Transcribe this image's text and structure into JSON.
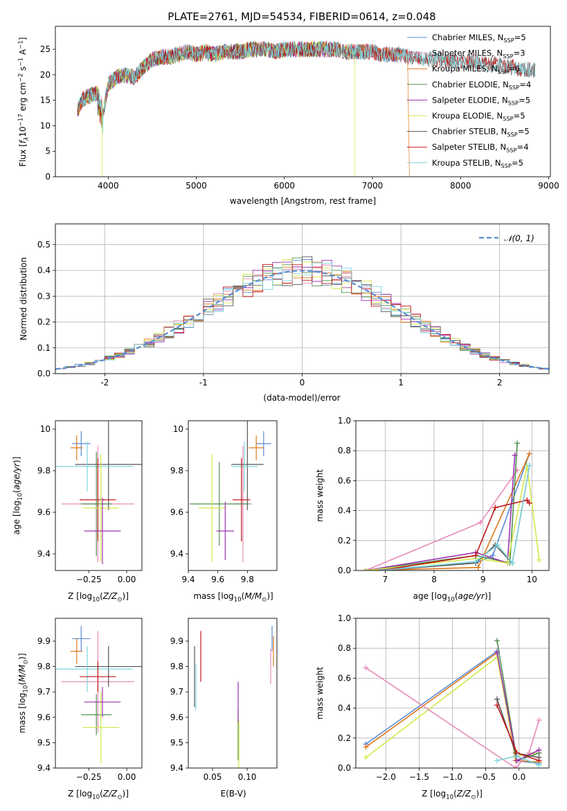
{
  "title": "PLATE=2761, MJD=54534, FIBERID=0614, z=0.048",
  "colors": {
    "Chabrier MILES": "#5b8bd4",
    "Salpeter MILES": "#e889b8",
    "Kroupa MILES": "#e0781c",
    "Chabrier ELODIE": "#4e8f4e",
    "Salpeter ELODIE": "#9b30b0",
    "Kroupa ELODIE": "#d3e84a",
    "Chabrier STELIB": "#555555",
    "Salpeter STELIB": "#c01818",
    "Kroupa STELIB": "#7dd6dc"
  },
  "chart_data": [
    {
      "id": "spectrum",
      "type": "line",
      "xlabel": "wavelength [Angstrom, rest frame]",
      "ylabel": "Flux [f_λ10^−17 erg cm^−2 s^−1 A^−1]",
      "xlim": [
        3400,
        9020
      ],
      "ylim": [
        0,
        29.5
      ],
      "xticks": [
        4000,
        5000,
        6000,
        7000,
        8000,
        9000
      ],
      "yticks": [
        0,
        5,
        10,
        15,
        20,
        25
      ],
      "legend_position": "top-right",
      "legend": [
        {
          "name": "Chabrier MILES",
          "prefix": "Chabrier MILES, N",
          "sub": "SSP",
          "suffix": "=5"
        },
        {
          "name": "Salpeter MILES",
          "prefix": "Salpeter MILES, N",
          "sub": "SSP",
          "suffix": "=3"
        },
        {
          "name": "Kroupa MILES",
          "prefix": "Kroupa MILES, N",
          "sub": "SSP",
          "suffix": "=6"
        },
        {
          "name": "Chabrier ELODIE",
          "prefix": "Chabrier ELODIE, N",
          "sub": "SSP",
          "suffix": "=4"
        },
        {
          "name": "Salpeter ELODIE",
          "prefix": "Salpeter ELODIE, N",
          "sub": "SSP",
          "suffix": "=5"
        },
        {
          "name": "Kroupa ELODIE",
          "prefix": "Kroupa ELODIE, N",
          "sub": "SSP",
          "suffix": "=5"
        },
        {
          "name": "Chabrier STELIB",
          "prefix": "Chabrier STELIB, N",
          "sub": "SSP",
          "suffix": "=5"
        },
        {
          "name": "Salpeter STELIB",
          "prefix": "Salpeter STELIB, N",
          "sub": "SSP",
          "suffix": "=4"
        },
        {
          "name": "Kroupa STELIB",
          "prefix": "Kroupa STELIB, N",
          "sub": "SSP",
          "suffix": "=5"
        }
      ],
      "continuum": [
        [
          3650,
          13
        ],
        [
          3700,
          15
        ],
        [
          3800,
          16
        ],
        [
          3900,
          16.5
        ],
        [
          3950,
          13
        ],
        [
          4000,
          18
        ],
        [
          4100,
          19.5
        ],
        [
          4200,
          20
        ],
        [
          4300,
          19.5
        ],
        [
          4400,
          21.5
        ],
        [
          4500,
          23
        ],
        [
          4600,
          23.5
        ],
        [
          4700,
          23.5
        ],
        [
          4800,
          24
        ],
        [
          4900,
          24.5
        ],
        [
          5000,
          24
        ],
        [
          5100,
          24.5
        ],
        [
          5200,
          24
        ],
        [
          5300,
          24.5
        ],
        [
          5400,
          24.5
        ],
        [
          5500,
          24.5
        ],
        [
          5600,
          25
        ],
        [
          5700,
          25
        ],
        [
          5800,
          25
        ],
        [
          5900,
          24.5
        ],
        [
          6000,
          25
        ],
        [
          6100,
          25
        ],
        [
          6200,
          25
        ],
        [
          6300,
          25
        ],
        [
          6400,
          25
        ],
        [
          6500,
          25
        ],
        [
          6600,
          25
        ],
        [
          6700,
          24.5
        ],
        [
          6800,
          24.5
        ],
        [
          6900,
          24.5
        ],
        [
          7000,
          24.5
        ],
        [
          7100,
          24
        ],
        [
          7200,
          24
        ],
        [
          7300,
          24
        ],
        [
          7400,
          23.5
        ],
        [
          7500,
          23.5
        ],
        [
          7600,
          23
        ],
        [
          7700,
          23
        ],
        [
          7800,
          23
        ],
        [
          7900,
          22.5
        ],
        [
          8000,
          22.5
        ],
        [
          8100,
          22.5
        ],
        [
          8200,
          22.5
        ],
        [
          8300,
          22
        ],
        [
          8400,
          22
        ],
        [
          8500,
          21.5
        ],
        [
          8600,
          21.5
        ],
        [
          8700,
          21
        ],
        [
          8800,
          21
        ],
        [
          8850,
          21
        ]
      ],
      "spectrum_ranges": [
        {
          "name": "Chabrier MILES",
          "xmax": 7400
        },
        {
          "name": "Salpeter MILES",
          "xmax": 7400
        },
        {
          "name": "Kroupa MILES",
          "xmax": 7400,
          "drop": 7420
        },
        {
          "name": "Chabrier ELODIE",
          "xmax": 6800
        },
        {
          "name": "Salpeter ELODIE",
          "xmax": 6800
        },
        {
          "name": "Kroupa ELODIE",
          "xmax": 6800,
          "drop": 6800
        },
        {
          "name": "Chabrier STELIB",
          "xmax": 8850
        },
        {
          "name": "Salpeter STELIB",
          "xmax": 8850
        },
        {
          "name": "Kroupa STELIB",
          "xmax": 8850
        }
      ]
    },
    {
      "id": "residuals",
      "type": "histogram",
      "xlabel": "(data-model)/error",
      "ylabel": "Normed distribution",
      "xlim": [
        -2.5,
        2.5
      ],
      "ylim": [
        0,
        0.58
      ],
      "xticks": [
        -2,
        -1,
        0,
        1,
        2
      ],
      "yticks": [
        0.0,
        0.1,
        0.2,
        0.3,
        0.4,
        0.5
      ],
      "grid": true,
      "legend_position": "top-right",
      "legend": [
        {
          "name": "𝒩(0, 1)",
          "style": "dashed",
          "color": "#5b8bd4"
        }
      ],
      "bin_width": 0.1,
      "bin_start": -2.5
    },
    {
      "id": "age-vs-Z",
      "type": "errorbar",
      "xlabel": "Z [log10(Z/Z⊙)]",
      "ylabel": "age  [log10(age/yr)]",
      "xlim": [
        -0.47,
        0.1
      ],
      "ylim": [
        9.32,
        10.04
      ],
      "xticks": [
        -0.25,
        0.0
      ],
      "xticklabels": [
        "−0.25",
        "0.00"
      ],
      "yticks": [
        9.4,
        9.6,
        9.8,
        10.0
      ],
      "points": [
        {
          "name": "Chabrier MILES",
          "x": -0.3,
          "xerr": 0.06,
          "y": 9.93,
          "yerr": 0.06
        },
        {
          "name": "Kroupa MILES",
          "x": -0.33,
          "xerr": 0.04,
          "y": 9.91,
          "yerr": 0.06
        },
        {
          "name": "Salpeter MILES",
          "x": -0.19,
          "xerr": 0.24,
          "y": 9.64,
          "yerr": 0.28
        },
        {
          "name": "Chabrier STELIB",
          "x": -0.12,
          "xerr": 0.22,
          "y": 9.83,
          "yerr": 0.22
        },
        {
          "name": "Kroupa STELIB",
          "x": -0.26,
          "xerr": 0.3,
          "y": 9.82,
          "yerr": 0.12
        },
        {
          "name": "Salpeter STELIB",
          "x": -0.19,
          "xerr": 0.12,
          "y": 9.66,
          "yerr": 0.2
        },
        {
          "name": "Chabrier ELODIE",
          "x": -0.2,
          "xerr": 0.1,
          "y": 9.64,
          "yerr": 0.25
        },
        {
          "name": "Kroupa ELODIE",
          "x": -0.17,
          "xerr": 0.12,
          "y": 9.62,
          "yerr": 0.26
        },
        {
          "name": "Salpeter ELODIE",
          "x": -0.16,
          "xerr": 0.12,
          "y": 9.51,
          "yerr": 0.16
        }
      ]
    },
    {
      "id": "age-vs-mass",
      "type": "errorbar",
      "xlabel": "mass [log10(M/M⊙)]",
      "xlim": [
        9.4,
        10.0
      ],
      "ylim": [
        9.32,
        10.04
      ],
      "xticks": [
        9.4,
        9.6,
        9.8
      ],
      "yticks": [
        9.4,
        9.6,
        9.8,
        10.0
      ],
      "points": [
        {
          "name": "Chabrier MILES",
          "x": 9.91,
          "xerr": 0.05,
          "y": 9.93,
          "yerr": 0.06
        },
        {
          "name": "Kroupa MILES",
          "x": 9.86,
          "xerr": 0.05,
          "y": 9.91,
          "yerr": 0.06
        },
        {
          "name": "Salpeter MILES",
          "x": 9.77,
          "xerr": 0.06,
          "y": 9.64,
          "yerr": 0.28
        },
        {
          "name": "Chabrier STELIB",
          "x": 9.8,
          "xerr": 0.11,
          "y": 9.83,
          "yerr": 0.22
        },
        {
          "name": "Kroupa STELIB",
          "x": 9.78,
          "xerr": 0.09,
          "y": 9.82,
          "yerr": 0.12
        },
        {
          "name": "Salpeter STELIB",
          "x": 9.76,
          "xerr": 0.06,
          "y": 9.66,
          "yerr": 0.2
        },
        {
          "name": "Chabrier ELODIE",
          "x": 9.61,
          "xerr": 0.2,
          "y": 9.64,
          "yerr": 0.2
        },
        {
          "name": "Kroupa ELODIE",
          "x": 9.56,
          "xerr": 0.09,
          "y": 9.62,
          "yerr": 0.26
        },
        {
          "name": "Salpeter ELODIE",
          "x": 9.65,
          "xerr": 0.06,
          "y": 9.51,
          "yerr": 0.14
        }
      ]
    },
    {
      "id": "mass-weight-vs-age",
      "type": "line",
      "xlabel": "age  [log10(age/yr)]",
      "ylabel": "mass weight",
      "xlim": [
        6.4,
        10.35
      ],
      "ylim": [
        0,
        1.0
      ],
      "xticks": [
        7,
        8,
        9,
        10
      ],
      "yticks": [
        0.0,
        0.2,
        0.4,
        0.6,
        0.8,
        1.0
      ],
      "grid": true,
      "series": [
        {
          "name": "Chabrier MILES",
          "x": [
            6.6,
            8.85,
            9.2,
            9.95
          ],
          "y": [
            0.0,
            0.05,
            0.1,
            0.78
          ]
        },
        {
          "name": "Salpeter MILES",
          "x": [
            6.6,
            8.95,
            9.7
          ],
          "y": [
            0.0,
            0.32,
            0.67
          ]
        },
        {
          "name": "Kroupa MILES",
          "x": [
            6.6,
            8.9,
            9.95
          ],
          "y": [
            0.0,
            0.02,
            0.78
          ]
        },
        {
          "name": "Chabrier ELODIE",
          "x": [
            6.6,
            8.85,
            9.55,
            9.7
          ],
          "y": [
            0.0,
            0.1,
            0.05,
            0.85
          ]
        },
        {
          "name": "Salpeter ELODIE",
          "x": [
            6.6,
            8.85,
            9.5,
            9.65
          ],
          "y": [
            0.0,
            0.12,
            0.05,
            0.77
          ]
        },
        {
          "name": "Kroupa ELODIE",
          "x": [
            6.6,
            8.85,
            9.5,
            9.9,
            10.15
          ],
          "y": [
            0.0,
            0.08,
            0.05,
            0.7,
            0.07
          ]
        },
        {
          "name": "Chabrier STELIB",
          "x": [
            6.9,
            8.85,
            9.25,
            9.6,
            9.95
          ],
          "y": [
            0.0,
            0.05,
            0.17,
            0.05,
            0.7
          ]
        },
        {
          "name": "Salpeter STELIB",
          "x": [
            6.9,
            8.85,
            9.25,
            9.9,
            9.95
          ],
          "y": [
            0.0,
            0.1,
            0.42,
            0.47,
            0.45
          ]
        },
        {
          "name": "Kroupa STELIB",
          "x": [
            6.9,
            8.85,
            9.3,
            9.6,
            9.95
          ],
          "y": [
            0.0,
            0.06,
            0.17,
            0.05,
            0.7
          ]
        }
      ]
    },
    {
      "id": "mass-vs-Z",
      "type": "errorbar",
      "xlabel": "Z [log10(Z/Z⊙)]",
      "ylabel": "mass [log10(M/M⊙)]",
      "xlim": [
        -0.47,
        0.1
      ],
      "ylim": [
        9.4,
        9.99
      ],
      "xticks": [
        -0.25,
        0.0
      ],
      "xticklabels": [
        "−0.25",
        "0.00"
      ],
      "yticks": [
        9.4,
        9.5,
        9.6,
        9.7,
        9.8,
        9.9
      ],
      "points": [
        {
          "name": "Chabrier MILES",
          "x": -0.3,
          "xerr": 0.06,
          "y": 9.91,
          "yerr": 0.05
        },
        {
          "name": "Kroupa MILES",
          "x": -0.33,
          "xerr": 0.04,
          "y": 9.86,
          "yerr": 0.05
        },
        {
          "name": "Salpeter MILES",
          "x": -0.19,
          "xerr": 0.24,
          "y": 9.74,
          "yerr": 0.2
        },
        {
          "name": "Chabrier STELIB",
          "x": -0.12,
          "xerr": 0.22,
          "y": 9.8,
          "yerr": 0.08
        },
        {
          "name": "Kroupa STELIB",
          "x": -0.26,
          "xerr": 0.3,
          "y": 9.79,
          "yerr": 0.09
        },
        {
          "name": "Salpeter STELIB",
          "x": -0.19,
          "xerr": 0.12,
          "y": 9.76,
          "yerr": 0.06
        },
        {
          "name": "Chabrier ELODIE",
          "x": -0.2,
          "xerr": 0.1,
          "y": 9.61,
          "yerr": 0.08
        },
        {
          "name": "Kroupa ELODIE",
          "x": -0.17,
          "xerr": 0.12,
          "y": 9.56,
          "yerr": 0.14
        },
        {
          "name": "Salpeter ELODIE",
          "x": -0.16,
          "xerr": 0.12,
          "y": 9.66,
          "yerr": 0.06
        }
      ]
    },
    {
      "id": "mass-vs-EBV",
      "type": "errorbar",
      "xlabel": "E(B-V)",
      "xlim": [
        0.015,
        0.143
      ],
      "ylim": [
        9.4,
        9.99
      ],
      "xticks": [
        0.05,
        0.1
      ],
      "xticklabels": [
        "0.05",
        "0.10"
      ],
      "yticks": [
        9.4,
        9.5,
        9.6,
        9.7,
        9.8,
        9.9
      ],
      "points": [
        {
          "name": "Chabrier MILES",
          "x": 0.136,
          "xerr": 0,
          "y": 9.91,
          "yerr": 0.05
        },
        {
          "name": "Kroupa MILES",
          "x": 0.138,
          "xerr": 0,
          "y": 9.86,
          "yerr": 0.06
        },
        {
          "name": "Salpeter MILES",
          "x": 0.134,
          "xerr": 0,
          "y": 9.8,
          "yerr": 0.07
        },
        {
          "name": "Chabrier STELIB",
          "x": 0.024,
          "xerr": 0,
          "y": 9.76,
          "yerr": 0.12
        },
        {
          "name": "Kroupa STELIB",
          "x": 0.026,
          "xerr": 0,
          "y": 9.72,
          "yerr": 0.09
        },
        {
          "name": "Salpeter STELIB",
          "x": 0.033,
          "xerr": 0,
          "y": 9.84,
          "yerr": 0.1
        },
        {
          "name": "Chabrier ELODIE",
          "x": 0.087,
          "xerr": 0,
          "y": 9.53,
          "yerr": 0.1
        },
        {
          "name": "Kroupa ELODIE",
          "x": 0.088,
          "xerr": 0,
          "y": 9.49,
          "yerr": 0.1
        },
        {
          "name": "Salpeter ELODIE",
          "x": 0.087,
          "xerr": 0,
          "y": 9.66,
          "yerr": 0.08
        }
      ]
    },
    {
      "id": "mass-weight-vs-Z",
      "type": "line",
      "xlabel": "Z [log10(Z/Z⊙)]",
      "ylabel": "mass weight",
      "xlim": [
        -2.45,
        0.45
      ],
      "ylim": [
        0,
        1.0
      ],
      "xticks": [
        -2.0,
        -1.5,
        -1.0,
        -0.5,
        0.0
      ],
      "xticklabels": [
        "−2.0",
        "−1.5",
        "−1.0",
        "−0.5",
        "0.0"
      ],
      "yticks": [
        0.0,
        0.2,
        0.4,
        0.6,
        0.8,
        1.0
      ],
      "grid": true,
      "series": [
        {
          "name": "Chabrier MILES",
          "x": [
            -2.3,
            -0.33,
            -0.05,
            0.3
          ],
          "y": [
            0.16,
            0.78,
            0.05,
            0.03
          ]
        },
        {
          "name": "Kroupa MILES",
          "x": [
            -2.3,
            -0.33,
            -0.05,
            0.3
          ],
          "y": [
            0.14,
            0.77,
            0.05,
            0.04
          ]
        },
        {
          "name": "Kroupa ELODIE",
          "x": [
            -2.3,
            -0.33,
            -0.05,
            0.3
          ],
          "y": [
            0.07,
            0.74,
            0.08,
            0.1
          ]
        },
        {
          "name": "Salpeter MILES",
          "x": [
            -2.3,
            -0.05,
            0.15,
            0.3
          ],
          "y": [
            0.67,
            0.0,
            0.1,
            0.32
          ]
        },
        {
          "name": "Chabrier ELODIE",
          "x": [
            -0.33,
            -0.03,
            0.3
          ],
          "y": [
            0.85,
            0.05,
            0.1
          ]
        },
        {
          "name": "Salpeter ELODIE",
          "x": [
            -0.33,
            -0.03,
            0.3
          ],
          "y": [
            0.77,
            0.05,
            0.12
          ]
        },
        {
          "name": "Chabrier STELIB",
          "x": [
            -0.33,
            -0.05,
            0.3
          ],
          "y": [
            0.46,
            0.1,
            0.07
          ]
        },
        {
          "name": "Salpeter STELIB",
          "x": [
            -0.33,
            -0.03,
            0.3
          ],
          "y": [
            0.42,
            0.1,
            0.05
          ]
        },
        {
          "name": "Kroupa STELIB",
          "x": [
            -0.33,
            -0.03,
            0.3
          ],
          "y": [
            0.05,
            0.08,
            0.02
          ]
        }
      ]
    }
  ]
}
